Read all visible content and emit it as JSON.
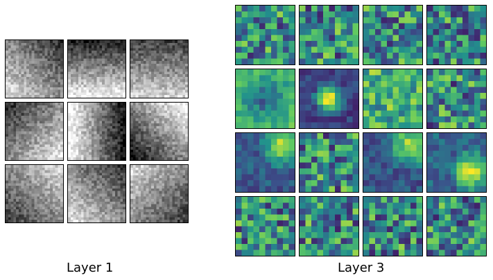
{
  "captions": {
    "left": "Layer 1",
    "right": "Layer 3"
  },
  "panels": {
    "left": {
      "rows": 3,
      "cols": 3,
      "resolution": 22,
      "colormap": "greys",
      "tiles": [
        {
          "dark": "top-right",
          "contrast": 0.55
        },
        {
          "dark": "top",
          "contrast": 0.65
        },
        {
          "dark": "top",
          "contrast": 0.45
        },
        {
          "dark": "top-left",
          "contrast": 0.6
        },
        {
          "dark": "right",
          "contrast": 0.7
        },
        {
          "dark": "bottom-left",
          "contrast": 0.75
        },
        {
          "dark": "bottom-left",
          "contrast": 0.5
        },
        {
          "dark": "top-right",
          "contrast": 0.55
        },
        {
          "dark": "bottom-right",
          "contrast": 0.5
        }
      ]
    },
    "right": {
      "rows": 4,
      "cols": 4,
      "resolution": 10,
      "colormap": "viridis",
      "colors": [
        "#440154",
        "#3b528b",
        "#21918c",
        "#5ec962",
        "#fde725"
      ],
      "tiles": [
        {
          "pattern": "noise"
        },
        {
          "pattern": "noise"
        },
        {
          "pattern": "noise"
        },
        {
          "pattern": "noise"
        },
        {
          "pattern": "ring"
        },
        {
          "pattern": "center-bright"
        },
        {
          "pattern": "noise-bright"
        },
        {
          "pattern": "noise"
        },
        {
          "pattern": "blob-tr"
        },
        {
          "pattern": "noise"
        },
        {
          "pattern": "blob-tr"
        },
        {
          "pattern": "blob-br"
        },
        {
          "pattern": "noise"
        },
        {
          "pattern": "noise"
        },
        {
          "pattern": "noise"
        },
        {
          "pattern": "noise"
        }
      ]
    }
  }
}
